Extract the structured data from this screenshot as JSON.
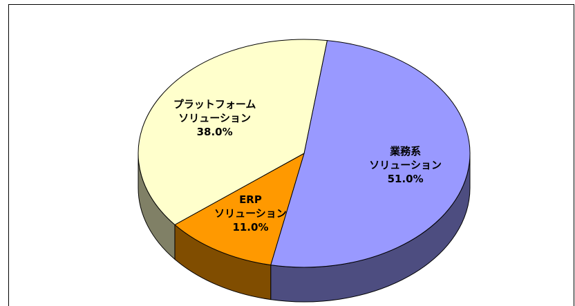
{
  "chart_data": {
    "type": "pie",
    "categories": [
      [
        "業務系",
        "ソリューション"
      ],
      [
        "ERP",
        "ソリューション"
      ],
      [
        "プラットフォーム",
        "ソリューション"
      ]
    ],
    "values": [
      51,
      11,
      38
    ],
    "value_labels": [
      "51.0%",
      "11.0%",
      "38.0%"
    ],
    "colors": [
      "#9999ff",
      "#ff9900",
      "#ffffcc"
    ],
    "side_colors": [
      "#4d4d80",
      "#804d00",
      "#808066"
    ]
  }
}
